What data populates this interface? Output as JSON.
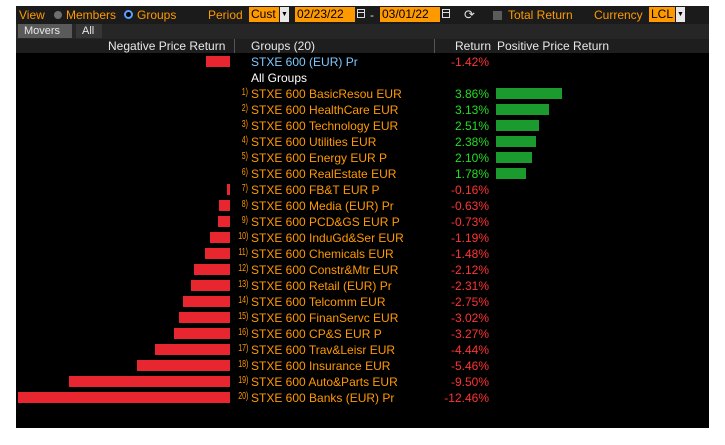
{
  "toolbar": {
    "view_label": "View",
    "members_label": "Members",
    "groups_label": "Groups",
    "period_label": "Period",
    "period_value": "Cust",
    "start_date": "02/23/22",
    "date_separator": "-",
    "end_date": "03/01/22",
    "total_return_label": "Total Return",
    "currency_label": "Currency",
    "currency_value": "LCL"
  },
  "tabs": {
    "movers": "Movers",
    "all": "All"
  },
  "header": {
    "negative": "Negative Price Return",
    "groups": "Groups (20)",
    "return": "Return",
    "positive": "Positive Price Return"
  },
  "colors": {
    "accent": "#ff9900",
    "negative": "#e8262f",
    "positive": "#1b9a2e",
    "index_name": "#7fc8ff"
  },
  "index_row": {
    "name": "STXE 600 (EUR) Pr",
    "return_text": "-1.42%",
    "value": -1.42
  },
  "all_groups_label": "All Groups",
  "rows": [
    {
      "rank": "1)",
      "name": "STXE 600 BasicResou EUR",
      "return_text": "3.86%",
      "value": 3.86
    },
    {
      "rank": "2)",
      "name": "STXE 600 HealthCare EUR",
      "return_text": "3.13%",
      "value": 3.13
    },
    {
      "rank": "3)",
      "name": "STXE 600 Technology EUR",
      "return_text": "2.51%",
      "value": 2.51
    },
    {
      "rank": "4)",
      "name": "STXE 600 Utilities EUR",
      "return_text": "2.38%",
      "value": 2.38
    },
    {
      "rank": "5)",
      "name": "STXE 600 Energy EUR P",
      "return_text": "2.10%",
      "value": 2.1
    },
    {
      "rank": "6)",
      "name": "STXE 600 RealEstate EUR",
      "return_text": "1.78%",
      "value": 1.78
    },
    {
      "rank": "7)",
      "name": "STXE 600 FB&T EUR P",
      "return_text": "-0.16%",
      "value": -0.16
    },
    {
      "rank": "8)",
      "name": "STXE 600 Media (EUR) Pr",
      "return_text": "-0.63%",
      "value": -0.63
    },
    {
      "rank": "9)",
      "name": "STXE 600 PCD&GS EUR P",
      "return_text": "-0.73%",
      "value": -0.73
    },
    {
      "rank": "10)",
      "name": "STXE 600 InduGd&Ser EUR",
      "return_text": "-1.19%",
      "value": -1.19
    },
    {
      "rank": "11)",
      "name": "STXE 600 Chemicals EUR",
      "return_text": "-1.48%",
      "value": -1.48
    },
    {
      "rank": "12)",
      "name": "STXE 600 Constr&Mtr EUR",
      "return_text": "-2.12%",
      "value": -2.12
    },
    {
      "rank": "13)",
      "name": "STXE 600 Retail (EUR) Pr",
      "return_text": "-2.31%",
      "value": -2.31
    },
    {
      "rank": "14)",
      "name": "STXE 600 Telcomm EUR",
      "return_text": "-2.75%",
      "value": -2.75
    },
    {
      "rank": "15)",
      "name": "STXE 600 FinanServc EUR",
      "return_text": "-3.02%",
      "value": -3.02
    },
    {
      "rank": "16)",
      "name": "STXE 600 CP&S EUR P",
      "return_text": "-3.27%",
      "value": -3.27
    },
    {
      "rank": "17)",
      "name": "STXE 600 Trav&Leisr EUR",
      "return_text": "-4.44%",
      "value": -4.44
    },
    {
      "rank": "18)",
      "name": "STXE 600 Insurance EUR",
      "return_text": "-5.46%",
      "value": -5.46
    },
    {
      "rank": "19)",
      "name": "STXE 600 Auto&Parts EUR",
      "return_text": "-9.50%",
      "value": -9.5
    },
    {
      "rank": "20)",
      "name": "STXE 600 Banks (EUR) Pr",
      "return_text": "-12.46%",
      "value": -12.46
    }
  ]
}
